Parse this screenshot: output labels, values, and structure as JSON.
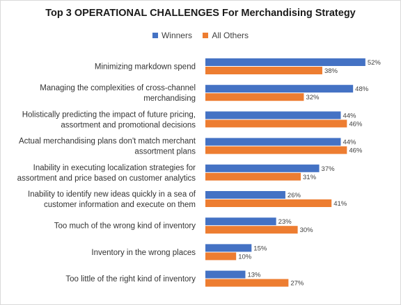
{
  "chart_data": {
    "type": "bar",
    "orientation": "horizontal",
    "title": "Top 3 OPERATIONAL CHALLENGES For Merchandising Strategy",
    "legend_position": "top",
    "grid": false,
    "colors": {
      "Winners": "#4472c4",
      "All Others": "#ed7d31"
    },
    "categories": [
      [
        "Minimizing markdown spend"
      ],
      [
        "Managing the complexities of cross-channel",
        "merchandising"
      ],
      [
        "Holistically predicting the impact of future pricing,",
        "assortment and promotional decisions"
      ],
      [
        "Actual merchandising plans don't match merchant",
        "assortment plans"
      ],
      [
        "Inability in executing localization strategies for",
        "assortment and price based on customer analytics"
      ],
      [
        "Inability to identify new ideas quickly in a sea of",
        "customer information and execute on them"
      ],
      [
        "Too much of the wrong kind of inventory"
      ],
      [
        "Inventory in the wrong places"
      ],
      [
        "Too little of the right kind of inventory"
      ]
    ],
    "series": [
      {
        "name": "Winners",
        "values": [
          52,
          48,
          44,
          44,
          37,
          26,
          23,
          15,
          13
        ]
      },
      {
        "name": "All Others",
        "values": [
          38,
          32,
          46,
          46,
          31,
          41,
          30,
          10,
          27
        ]
      }
    ],
    "value_suffix": "%"
  }
}
